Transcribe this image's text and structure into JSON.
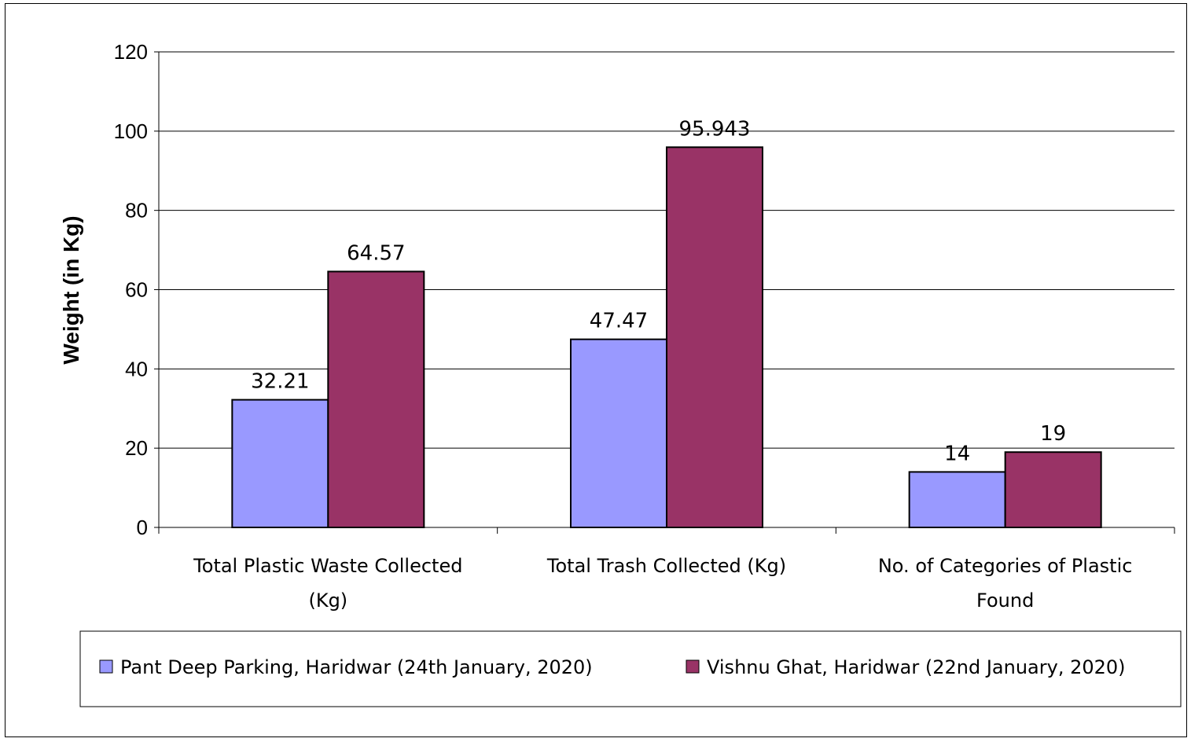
{
  "chart_data": {
    "type": "bar",
    "ylabel": "Weight (in Kg)",
    "ylim": [
      0,
      120
    ],
    "yticks": [
      0,
      20,
      40,
      60,
      80,
      100,
      120
    ],
    "grid": true,
    "legend_position": "bottom",
    "categories": [
      [
        "Total Plastic Waste Collected",
        "(Kg)"
      ],
      [
        "Total Trash Collected (Kg)"
      ],
      [
        "No. of Categories of Plastic",
        "Found"
      ]
    ],
    "series": [
      {
        "name": "Pant Deep Parking, Haridwar (24th January, 2020)",
        "color": "#9999FF",
        "values": [
          32.21,
          47.47,
          14
        ],
        "labels": [
          "32.21",
          "47.47",
          "14"
        ]
      },
      {
        "name": "Vishnu Ghat, Haridwar (22nd January, 2020)",
        "color": "#993366",
        "values": [
          64.57,
          95.943,
          19
        ],
        "labels": [
          "64.57",
          "95.943",
          "19"
        ]
      }
    ]
  }
}
